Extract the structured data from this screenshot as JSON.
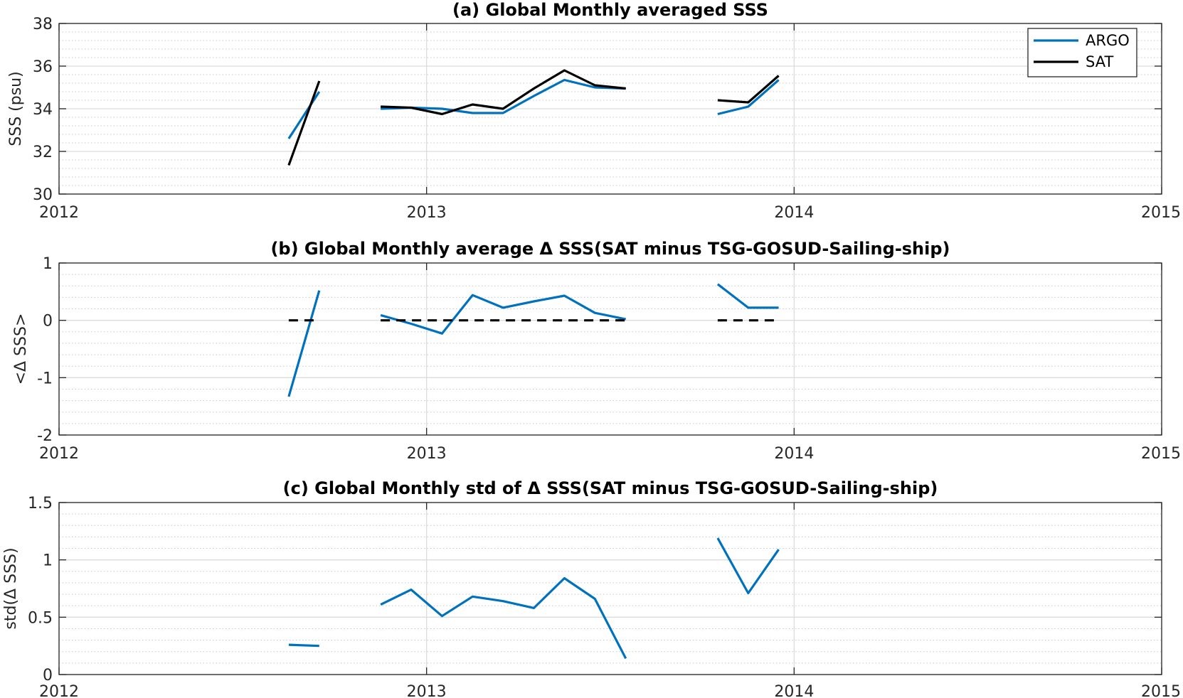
{
  "chart_data": [
    {
      "type": "line",
      "title": "(a) Global Monthly averaged SSS",
      "xlabel": "",
      "ylabel": "SSS (psu)",
      "xlim": [
        2012,
        2015
      ],
      "ylim": [
        30,
        38
      ],
      "xticks": [
        2012,
        2013,
        2014,
        2015
      ],
      "xtick_labels": [
        "2012",
        "2013",
        "2014",
        "2015"
      ],
      "yticks": [
        30,
        32,
        34,
        36,
        38
      ],
      "ytick_labels": [
        "30",
        "32",
        "34",
        "36",
        "38"
      ],
      "grid": true,
      "legend_position": "top-right",
      "series": [
        {
          "name": "ARGO",
          "color": "#0072bd",
          "segments": [
            [
              [
                2012.625,
                32.6
              ],
              [
                2012.708,
                34.8
              ]
            ],
            [
              [
                2012.875,
                34.0
              ],
              [
                2012.958,
                34.05
              ],
              [
                2013.042,
                34.0
              ],
              [
                2013.125,
                33.8
              ],
              [
                2013.208,
                33.8
              ],
              [
                2013.292,
                34.6
              ],
              [
                2013.375,
                35.35
              ],
              [
                2013.458,
                35.0
              ],
              [
                2013.542,
                34.95
              ]
            ],
            [
              [
                2013.792,
                33.75
              ],
              [
                2013.875,
                34.1
              ],
              [
                2013.958,
                35.35
              ]
            ]
          ]
        },
        {
          "name": "SAT",
          "color": "#000000",
          "segments": [
            [
              [
                2012.625,
                31.35
              ],
              [
                2012.708,
                35.3
              ]
            ],
            [
              [
                2012.875,
                34.1
              ],
              [
                2012.958,
                34.05
              ],
              [
                2013.042,
                33.75
              ],
              [
                2013.125,
                34.2
              ],
              [
                2013.208,
                34.0
              ],
              [
                2013.292,
                34.95
              ],
              [
                2013.375,
                35.8
              ],
              [
                2013.458,
                35.1
              ],
              [
                2013.542,
                34.95
              ]
            ],
            [
              [
                2013.792,
                34.4
              ],
              [
                2013.875,
                34.3
              ],
              [
                2013.958,
                35.55
              ]
            ]
          ]
        }
      ]
    },
    {
      "type": "line",
      "title": "(b) Global Monthly average Δ SSS(SAT minus TSG-GOSUD-Sailing-ship)",
      "xlabel": "",
      "ylabel": "<Δ SSS>",
      "xlim": [
        2012,
        2015
      ],
      "ylim": [
        -2,
        1
      ],
      "xticks": [
        2012,
        2013,
        2014,
        2015
      ],
      "xtick_labels": [
        "2012",
        "2013",
        "2014",
        "2015"
      ],
      "yticks": [
        -2,
        -1,
        0,
        1
      ],
      "ytick_labels": [
        "-2",
        "-1",
        "0",
        "1"
      ],
      "grid": true,
      "series": [
        {
          "color": "#0072bd",
          "segments": [
            [
              [
                2012.625,
                -1.33
              ],
              [
                2012.708,
                0.52
              ]
            ],
            [
              [
                2012.875,
                0.09
              ],
              [
                2012.958,
                -0.06
              ],
              [
                2013.042,
                -0.23
              ],
              [
                2013.125,
                0.44
              ],
              [
                2013.208,
                0.22
              ],
              [
                2013.292,
                0.33
              ],
              [
                2013.375,
                0.43
              ],
              [
                2013.458,
                0.13
              ],
              [
                2013.542,
                0.02
              ]
            ],
            [
              [
                2013.792,
                0.63
              ],
              [
                2013.875,
                0.22
              ],
              [
                2013.958,
                0.22
              ]
            ]
          ]
        },
        {
          "color": "#000000",
          "dashed": true,
          "segments": [
            [
              [
                2012.625,
                0
              ],
              [
                2012.708,
                0
              ]
            ],
            [
              [
                2012.875,
                0
              ],
              [
                2013.542,
                0
              ]
            ],
            [
              [
                2013.792,
                0
              ],
              [
                2013.958,
                0
              ]
            ]
          ]
        }
      ]
    },
    {
      "type": "line",
      "title": "(c) Global Monthly std of Δ SSS(SAT minus TSG-GOSUD-Sailing-ship)",
      "xlabel": "",
      "ylabel": "std(Δ SSS)",
      "xlim": [
        2012,
        2015
      ],
      "ylim": [
        0,
        1.5
      ],
      "xticks": [
        2012,
        2013,
        2014,
        2015
      ],
      "xtick_labels": [
        "2012",
        "2013",
        "2014",
        "2015"
      ],
      "yticks": [
        0,
        0.5,
        1,
        1.5
      ],
      "ytick_labels": [
        "0",
        "0.5",
        "1",
        "1.5"
      ],
      "grid": true,
      "series": [
        {
          "color": "#0072bd",
          "segments": [
            [
              [
                2012.625,
                0.26
              ],
              [
                2012.708,
                0.25
              ]
            ],
            [
              [
                2012.875,
                0.61
              ],
              [
                2012.958,
                0.74
              ],
              [
                2013.042,
                0.51
              ],
              [
                2013.125,
                0.68
              ],
              [
                2013.208,
                0.64
              ],
              [
                2013.292,
                0.58
              ],
              [
                2013.375,
                0.84
              ],
              [
                2013.458,
                0.66
              ],
              [
                2013.542,
                0.14
              ]
            ],
            [
              [
                2013.792,
                1.19
              ],
              [
                2013.875,
                0.71
              ],
              [
                2013.958,
                1.09
              ]
            ]
          ]
        }
      ]
    }
  ]
}
